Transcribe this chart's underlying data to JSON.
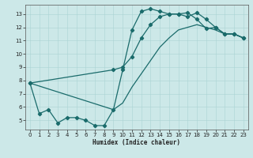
{
  "xlabel": "Humidex (Indice chaleur)",
  "background_color": "#cce8e8",
  "line_color": "#1a6b6b",
  "xlim": [
    -0.5,
    23.5
  ],
  "ylim": [
    4.3,
    13.7
  ],
  "xticks": [
    0,
    1,
    2,
    3,
    4,
    5,
    6,
    7,
    8,
    9,
    10,
    11,
    12,
    13,
    14,
    15,
    16,
    17,
    18,
    19,
    20,
    21,
    22,
    23
  ],
  "yticks": [
    5,
    6,
    7,
    8,
    9,
    10,
    11,
    12,
    13
  ],
  "series1_x": [
    0,
    1,
    2,
    3,
    4,
    5,
    6,
    7,
    8,
    9,
    10,
    11,
    12,
    13,
    14,
    15,
    16,
    17,
    18,
    19,
    20,
    21,
    22,
    23
  ],
  "series1_y": [
    7.8,
    5.5,
    5.8,
    4.8,
    5.2,
    5.2,
    5.0,
    4.6,
    4.6,
    5.8,
    8.8,
    11.8,
    13.2,
    13.4,
    13.2,
    13.0,
    13.0,
    13.1,
    12.6,
    11.9,
    12.0,
    11.5,
    11.5,
    11.2
  ],
  "series2_x": [
    0,
    9,
    10,
    11,
    12,
    13,
    14,
    15,
    16,
    17,
    18,
    19,
    20,
    21,
    22,
    23
  ],
  "series2_y": [
    7.8,
    8.8,
    9.0,
    9.8,
    11.2,
    12.2,
    12.8,
    13.0,
    13.0,
    12.8,
    13.1,
    12.6,
    12.0,
    11.5,
    11.5,
    11.2
  ],
  "series3_x": [
    0,
    9,
    10,
    11,
    12,
    13,
    14,
    15,
    16,
    17,
    18,
    19,
    20,
    21,
    22,
    23
  ],
  "series3_y": [
    7.8,
    5.8,
    6.3,
    7.5,
    8.5,
    9.5,
    10.5,
    11.2,
    11.8,
    12.0,
    12.2,
    12.0,
    11.8,
    11.5,
    11.5,
    11.2
  ]
}
